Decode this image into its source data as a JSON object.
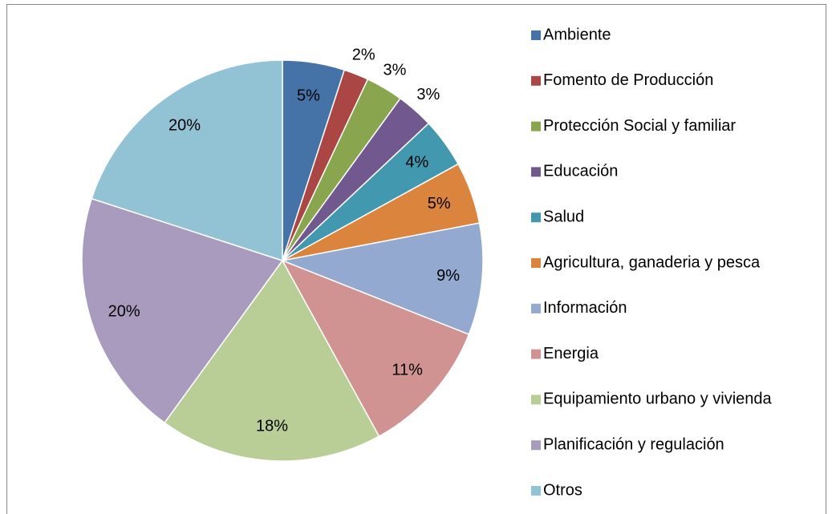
{
  "chart_data": {
    "type": "pie",
    "categories": [
      "Ambiente",
      "Fomento de Producción",
      "Protección Social y familiar",
      "Educación",
      "Salud",
      "Agricultura, ganaderia y pesca",
      "Información",
      "Energia",
      "Equipamiento urbano y vivienda",
      "Planificación y regulación",
      "Otros"
    ],
    "values": [
      5,
      2,
      3,
      3,
      4,
      5,
      9,
      11,
      18,
      20,
      20
    ],
    "value_labels": [
      "5%",
      "2%",
      "3%",
      "3%",
      "4%",
      "5%",
      "9%",
      "11%",
      "18%",
      "20%",
      "20%"
    ],
    "colors": [
      "#4572a7",
      "#aa4643",
      "#89a54e",
      "#71588f",
      "#4198af",
      "#db843d",
      "#93a9cf",
      "#d19392",
      "#b9cd96",
      "#a99bbd",
      "#92c3d5"
    ],
    "legend": "right"
  }
}
